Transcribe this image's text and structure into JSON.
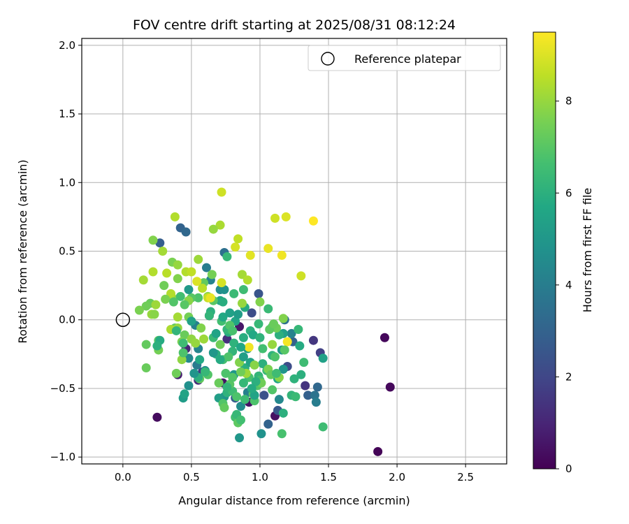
{
  "chart_data": {
    "type": "scatter",
    "title": "FOV centre drift starting at 2025/08/31 08:12:24",
    "xlabel": "Angular distance from reference (arcmin)",
    "ylabel": "Rotation from reference (arcmin)",
    "colorbar_label": "Hours from first FF file",
    "xlim": [
      -0.3,
      2.8
    ],
    "ylim": [
      -1.05,
      2.05
    ],
    "xticks": [
      "0.0",
      "0.5",
      "1.0",
      "1.5",
      "2.0",
      "2.5"
    ],
    "xtick_values": [
      0.0,
      0.5,
      1.0,
      1.5,
      2.0,
      2.5
    ],
    "yticks": [
      "−1.0",
      "−0.5",
      "0.0",
      "0.5",
      "1.0",
      "1.5",
      "2.0"
    ],
    "ytick_values": [
      -1.0,
      -0.5,
      0.0,
      0.5,
      1.0,
      1.5,
      2.0
    ],
    "colorbar_range": [
      0,
      9.5
    ],
    "colorbar_ticks": [
      "0",
      "2",
      "4",
      "6",
      "8"
    ],
    "colorbar_tick_values": [
      0,
      2,
      4,
      6,
      8
    ],
    "colormap": "viridis",
    "grid": true,
    "legend": {
      "position": "top-right",
      "entries": [
        {
          "label": "Reference platepar",
          "marker": "open-circle"
        }
      ]
    },
    "reference_point": {
      "x": 0.0,
      "y": 0.0
    },
    "points": [
      {
        "x": 1.91,
        "y": -0.13,
        "c": 0.2
      },
      {
        "x": 1.95,
        "y": -0.49,
        "c": 0.2
      },
      {
        "x": 1.86,
        "y": -0.96,
        "c": 0.1
      },
      {
        "x": 0.25,
        "y": -0.71,
        "c": 0.3
      },
      {
        "x": 1.11,
        "y": -0.7,
        "c": 0.4
      },
      {
        "x": 0.92,
        "y": -0.6,
        "c": 0.5
      },
      {
        "x": 0.63,
        "y": 0.03,
        "c": 0.3
      },
      {
        "x": 0.46,
        "y": -0.21,
        "c": 1.0
      },
      {
        "x": 0.55,
        "y": -0.44,
        "c": 1.2
      },
      {
        "x": 0.4,
        "y": -0.4,
        "c": 0.8
      },
      {
        "x": 0.85,
        "y": -0.05,
        "c": 0.6
      },
      {
        "x": 0.73,
        "y": -0.46,
        "c": 0.5
      },
      {
        "x": 1.39,
        "y": -0.15,
        "c": 1.5
      },
      {
        "x": 1.44,
        "y": -0.24,
        "c": 1.8
      },
      {
        "x": 1.33,
        "y": -0.48,
        "c": 1.4
      },
      {
        "x": 0.76,
        "y": -0.14,
        "c": 1.3
      },
      {
        "x": 0.58,
        "y": -0.38,
        "c": 1.7
      },
      {
        "x": 0.94,
        "y": 0.05,
        "c": 2.2
      },
      {
        "x": 0.99,
        "y": 0.19,
        "c": 2.5
      },
      {
        "x": 0.27,
        "y": 0.56,
        "c": 2.8
      },
      {
        "x": 0.42,
        "y": 0.67,
        "c": 3.0
      },
      {
        "x": 0.46,
        "y": 0.64,
        "c": 3.2
      },
      {
        "x": 0.74,
        "y": 0.49,
        "c": 3.5
      },
      {
        "x": 0.82,
        "y": -0.57,
        "c": 2.8
      },
      {
        "x": 1.03,
        "y": -0.55,
        "c": 2.4
      },
      {
        "x": 1.13,
        "y": -0.66,
        "c": 2.6
      },
      {
        "x": 1.06,
        "y": -0.76,
        "c": 3.0
      },
      {
        "x": 1.35,
        "y": -0.55,
        "c": 2.9
      },
      {
        "x": 1.4,
        "y": -0.55,
        "c": 3.6
      },
      {
        "x": 1.41,
        "y": -0.6,
        "c": 4.0
      },
      {
        "x": 1.42,
        "y": -0.49,
        "c": 3.2
      },
      {
        "x": 1.2,
        "y": -0.34,
        "c": 2.2
      },
      {
        "x": 1.24,
        "y": -0.16,
        "c": 3.0
      },
      {
        "x": 1.23,
        "y": -0.1,
        "c": 4.2
      },
      {
        "x": 1.18,
        "y": 0.0,
        "c": 3.5
      },
      {
        "x": 0.61,
        "y": 0.38,
        "c": 4.0
      },
      {
        "x": 0.64,
        "y": 0.29,
        "c": 4.2
      },
      {
        "x": 0.71,
        "y": 0.22,
        "c": 4.5
      },
      {
        "x": 0.74,
        "y": 0.22,
        "c": 4.8
      },
      {
        "x": 0.53,
        "y": -0.04,
        "c": 4.1
      },
      {
        "x": 0.55,
        "y": -0.21,
        "c": 4.3
      },
      {
        "x": 0.48,
        "y": -0.28,
        "c": 4.4
      },
      {
        "x": 0.54,
        "y": -0.33,
        "c": 3.9
      },
      {
        "x": 0.6,
        "y": -0.37,
        "c": 4.6
      },
      {
        "x": 0.48,
        "y": -0.48,
        "c": 4.7
      },
      {
        "x": 0.44,
        "y": -0.57,
        "c": 5.2
      },
      {
        "x": 0.45,
        "y": -0.54,
        "c": 5.5
      },
      {
        "x": 0.74,
        "y": -0.56,
        "c": 4.9
      },
      {
        "x": 0.7,
        "y": -0.57,
        "c": 5.3
      },
      {
        "x": 0.86,
        "y": -0.63,
        "c": 4.6
      },
      {
        "x": 0.91,
        "y": -0.53,
        "c": 4.1
      },
      {
        "x": 0.98,
        "y": -0.46,
        "c": 5.0
      },
      {
        "x": 1.01,
        "y": -0.83,
        "c": 4.8
      },
      {
        "x": 0.85,
        "y": -0.86,
        "c": 5.0
      },
      {
        "x": 1.14,
        "y": -0.58,
        "c": 4.4
      },
      {
        "x": 1.17,
        "y": -0.36,
        "c": 4.9
      },
      {
        "x": 1.13,
        "y": -0.43,
        "c": 5.6
      },
      {
        "x": 1.16,
        "y": -0.22,
        "c": 5.1
      },
      {
        "x": 1.17,
        "y": -0.1,
        "c": 5.4
      },
      {
        "x": 1.14,
        "y": -0.11,
        "c": 6.0
      },
      {
        "x": 1.46,
        "y": -0.28,
        "c": 5.4
      },
      {
        "x": 1.29,
        "y": -0.19,
        "c": 5.8
      },
      {
        "x": 1.28,
        "y": -0.07,
        "c": 6.3
      },
      {
        "x": 1.32,
        "y": -0.31,
        "c": 6.5
      },
      {
        "x": 1.3,
        "y": -0.4,
        "c": 6.0
      },
      {
        "x": 1.23,
        "y": -0.55,
        "c": 6.2
      },
      {
        "x": 1.26,
        "y": -0.56,
        "c": 6.4
      },
      {
        "x": 1.17,
        "y": -0.68,
        "c": 6.0
      },
      {
        "x": 1.16,
        "y": -0.83,
        "c": 6.7
      },
      {
        "x": 1.46,
        "y": -0.78,
        "c": 6.5
      },
      {
        "x": 0.81,
        "y": -0.4,
        "c": 5.0
      },
      {
        "x": 0.82,
        "y": -0.01,
        "c": 5.6
      },
      {
        "x": 0.77,
        "y": -0.09,
        "c": 5.9
      },
      {
        "x": 0.76,
        "y": -0.07,
        "c": 6.2
      },
      {
        "x": 0.81,
        "y": 0.19,
        "c": 6.4
      },
      {
        "x": 0.88,
        "y": 0.22,
        "c": 6.5
      },
      {
        "x": 0.89,
        "y": 0.09,
        "c": 5.8
      },
      {
        "x": 0.93,
        "y": -0.08,
        "c": 6.0
      },
      {
        "x": 0.99,
        "y": -0.03,
        "c": 6.3
      },
      {
        "x": 1.06,
        "y": 0.08,
        "c": 6.4
      },
      {
        "x": 1.09,
        "y": -0.05,
        "c": 6.6
      },
      {
        "x": 1.09,
        "y": -0.26,
        "c": 6.1
      },
      {
        "x": 1.05,
        "y": -0.37,
        "c": 6.4
      },
      {
        "x": 1.02,
        "y": -0.32,
        "c": 6.0
      },
      {
        "x": 0.99,
        "y": -0.41,
        "c": 6.2
      },
      {
        "x": 1.0,
        "y": -0.44,
        "c": 6.6
      },
      {
        "x": 0.98,
        "y": -0.48,
        "c": 6.9
      },
      {
        "x": 0.92,
        "y": -0.42,
        "c": 6.7
      },
      {
        "x": 0.95,
        "y": -0.54,
        "c": 7.0
      },
      {
        "x": 0.96,
        "y": -0.59,
        "c": 6.8
      },
      {
        "x": 0.89,
        "y": -0.58,
        "c": 6.5
      },
      {
        "x": 0.88,
        "y": -0.46,
        "c": 6.3
      },
      {
        "x": 0.89,
        "y": -0.35,
        "c": 6.0
      },
      {
        "x": 0.93,
        "y": -0.31,
        "c": 5.5
      },
      {
        "x": 0.91,
        "y": -0.21,
        "c": 5.2
      },
      {
        "x": 0.88,
        "y": -0.13,
        "c": 5.9
      },
      {
        "x": 0.8,
        "y": -0.23,
        "c": 6.2
      },
      {
        "x": 0.73,
        "y": -0.29,
        "c": 6.6
      },
      {
        "x": 0.75,
        "y": -0.39,
        "c": 6.8
      },
      {
        "x": 0.76,
        "y": -0.53,
        "c": 6.1
      },
      {
        "x": 0.8,
        "y": -0.52,
        "c": 6.5
      },
      {
        "x": 0.83,
        "y": -0.56,
        "c": 6.8
      },
      {
        "x": 0.82,
        "y": -0.71,
        "c": 6.6
      },
      {
        "x": 0.84,
        "y": -0.75,
        "c": 7.1
      },
      {
        "x": 0.73,
        "y": -0.61,
        "c": 6.9
      },
      {
        "x": 0.74,
        "y": -0.64,
        "c": 7.2
      },
      {
        "x": 0.7,
        "y": -0.46,
        "c": 7.3
      },
      {
        "x": 0.78,
        "y": -0.47,
        "c": 7.0
      },
      {
        "x": 0.68,
        "y": -0.25,
        "c": 6.0
      },
      {
        "x": 0.66,
        "y": -0.13,
        "c": 6.4
      },
      {
        "x": 0.71,
        "y": -0.18,
        "c": 7.4
      },
      {
        "x": 0.72,
        "y": -0.01,
        "c": 6.6
      },
      {
        "x": 0.73,
        "y": 0.02,
        "c": 5.7
      },
      {
        "x": 0.78,
        "y": 0.05,
        "c": 5.4
      },
      {
        "x": 0.84,
        "y": 0.04,
        "c": 5.2
      },
      {
        "x": 0.71,
        "y": 0.14,
        "c": 5.6
      },
      {
        "x": 0.66,
        "y": 0.14,
        "c": 7.0
      },
      {
        "x": 0.59,
        "y": 0.27,
        "c": 7.2
      },
      {
        "x": 0.65,
        "y": 0.33,
        "c": 7.5
      },
      {
        "x": 0.62,
        "y": 0.17,
        "c": 7.8
      },
      {
        "x": 0.64,
        "y": 0.06,
        "c": 6.0
      },
      {
        "x": 0.63,
        "y": 0.03,
        "c": 6.2
      },
      {
        "x": 0.55,
        "y": 0.16,
        "c": 6.8
      },
      {
        "x": 0.5,
        "y": 0.16,
        "c": 7.0
      },
      {
        "x": 0.48,
        "y": 0.02,
        "c": 7.5
      },
      {
        "x": 0.48,
        "y": 0.14,
        "c": 7.8
      },
      {
        "x": 0.45,
        "y": 0.11,
        "c": 7.0
      },
      {
        "x": 0.45,
        "y": -0.11,
        "c": 7.3
      },
      {
        "x": 0.43,
        "y": -0.16,
        "c": 7.6
      },
      {
        "x": 0.5,
        "y": -0.14,
        "c": 7.9
      },
      {
        "x": 0.53,
        "y": -0.17,
        "c": 8.0
      },
      {
        "x": 0.57,
        "y": -0.06,
        "c": 7.7
      },
      {
        "x": 0.59,
        "y": -0.14,
        "c": 8.1
      },
      {
        "x": 0.62,
        "y": -0.4,
        "c": 6.9
      },
      {
        "x": 0.6,
        "y": -0.38,
        "c": 6.3
      },
      {
        "x": 0.56,
        "y": -0.43,
        "c": 7.2
      },
      {
        "x": 0.43,
        "y": -0.29,
        "c": 7.9
      },
      {
        "x": 0.39,
        "y": -0.39,
        "c": 7.4
      },
      {
        "x": 0.38,
        "y": -0.06,
        "c": 7.1
      },
      {
        "x": 0.4,
        "y": -0.06,
        "c": 8.0
      },
      {
        "x": 0.4,
        "y": 0.02,
        "c": 8.2
      },
      {
        "x": 0.36,
        "y": 0.16,
        "c": 7.9
      },
      {
        "x": 0.35,
        "y": 0.19,
        "c": 8.4
      },
      {
        "x": 0.35,
        "y": -0.07,
        "c": 8.3
      },
      {
        "x": 0.31,
        "y": 0.15,
        "c": 7.6
      },
      {
        "x": 0.3,
        "y": 0.25,
        "c": 7.4
      },
      {
        "x": 0.32,
        "y": 0.34,
        "c": 8.5
      },
      {
        "x": 0.29,
        "y": 0.5,
        "c": 8.2
      },
      {
        "x": 0.22,
        "y": 0.58,
        "c": 7.7
      },
      {
        "x": 0.22,
        "y": 0.35,
        "c": 8.4
      },
      {
        "x": 0.2,
        "y": 0.12,
        "c": 7.3
      },
      {
        "x": 0.21,
        "y": 0.04,
        "c": 8.0
      },
      {
        "x": 0.24,
        "y": 0.11,
        "c": 8.1
      },
      {
        "x": 0.23,
        "y": 0.04,
        "c": 7.8
      },
      {
        "x": 0.17,
        "y": 0.1,
        "c": 7.4
      },
      {
        "x": 0.12,
        "y": 0.07,
        "c": 7.6
      },
      {
        "x": 0.15,
        "y": 0.29,
        "c": 8.2
      },
      {
        "x": 0.17,
        "y": -0.18,
        "c": 7.2
      },
      {
        "x": 0.26,
        "y": -0.15,
        "c": 7.0
      },
      {
        "x": 0.26,
        "y": -0.22,
        "c": 7.5
      },
      {
        "x": 0.17,
        "y": -0.35,
        "c": 7.3
      },
      {
        "x": 0.36,
        "y": 0.42,
        "c": 7.6
      },
      {
        "x": 0.4,
        "y": 0.4,
        "c": 8.0
      },
      {
        "x": 0.4,
        "y": 0.3,
        "c": 7.7
      },
      {
        "x": 0.46,
        "y": 0.35,
        "c": 8.4
      },
      {
        "x": 0.5,
        "y": 0.35,
        "c": 8.6
      },
      {
        "x": 0.55,
        "y": 0.44,
        "c": 8.1
      },
      {
        "x": 0.54,
        "y": 0.28,
        "c": 9.0
      },
      {
        "x": 0.58,
        "y": 0.23,
        "c": 8.5
      },
      {
        "x": 0.62,
        "y": 0.16,
        "c": 8.7
      },
      {
        "x": 0.64,
        "y": 0.16,
        "c": 9.2
      },
      {
        "x": 0.71,
        "y": 0.69,
        "c": 8.3
      },
      {
        "x": 0.66,
        "y": 0.66,
        "c": 8.0
      },
      {
        "x": 0.72,
        "y": 0.27,
        "c": 8.9
      },
      {
        "x": 0.72,
        "y": 0.93,
        "c": 8.8
      },
      {
        "x": 0.38,
        "y": 0.75,
        "c": 8.4
      },
      {
        "x": 0.82,
        "y": 0.53,
        "c": 8.9
      },
      {
        "x": 0.84,
        "y": 0.59,
        "c": 8.6
      },
      {
        "x": 0.87,
        "y": 0.33,
        "c": 8.2
      },
      {
        "x": 0.93,
        "y": 0.47,
        "c": 9.1
      },
      {
        "x": 0.91,
        "y": 0.29,
        "c": 8.4
      },
      {
        "x": 0.87,
        "y": 0.12,
        "c": 8.0
      },
      {
        "x": 1.0,
        "y": 0.13,
        "c": 7.7
      },
      {
        "x": 1.06,
        "y": 0.52,
        "c": 9.2
      },
      {
        "x": 1.11,
        "y": 0.74,
        "c": 8.8
      },
      {
        "x": 1.19,
        "y": 0.75,
        "c": 9.0
      },
      {
        "x": 1.16,
        "y": 0.47,
        "c": 9.3
      },
      {
        "x": 1.39,
        "y": 0.72,
        "c": 9.5
      },
      {
        "x": 1.3,
        "y": 0.32,
        "c": 8.8
      },
      {
        "x": 1.17,
        "y": 0.01,
        "c": 7.7
      },
      {
        "x": 1.12,
        "y": -0.06,
        "c": 7.4
      },
      {
        "x": 1.2,
        "y": -0.16,
        "c": 9.4
      },
      {
        "x": 1.18,
        "y": -0.22,
        "c": 7.0
      },
      {
        "x": 1.09,
        "y": -0.18,
        "c": 8.0
      },
      {
        "x": 1.06,
        "y": -0.36,
        "c": 7.6
      },
      {
        "x": 1.08,
        "y": -0.4,
        "c": 7.2
      },
      {
        "x": 1.14,
        "y": -0.42,
        "c": 7.8
      },
      {
        "x": 1.01,
        "y": -0.46,
        "c": 7.4
      },
      {
        "x": 1.09,
        "y": -0.51,
        "c": 6.9
      },
      {
        "x": 0.96,
        "y": -0.33,
        "c": 7.8
      },
      {
        "x": 0.92,
        "y": -0.2,
        "c": 9.3
      },
      {
        "x": 0.9,
        "y": -0.39,
        "c": 8.1
      },
      {
        "x": 0.86,
        "y": -0.38,
        "c": 7.4
      },
      {
        "x": 0.85,
        "y": -0.31,
        "c": 7.7
      },
      {
        "x": 0.8,
        "y": -0.42,
        "c": 6.9
      },
      {
        "x": 0.77,
        "y": -0.27,
        "c": 6.8
      },
      {
        "x": 0.71,
        "y": -0.29,
        "c": 5.8
      },
      {
        "x": 0.68,
        "y": -0.1,
        "c": 5.5
      },
      {
        "x": 0.66,
        "y": -0.24,
        "c": 5.0
      },
      {
        "x": 0.56,
        "y": -0.29,
        "c": 5.7
      },
      {
        "x": 0.55,
        "y": -0.42,
        "c": 6.0
      },
      {
        "x": 0.52,
        "y": -0.39,
        "c": 4.9
      },
      {
        "x": 0.44,
        "y": -0.24,
        "c": 6.8
      },
      {
        "x": 0.44,
        "y": -0.17,
        "c": 6.5
      },
      {
        "x": 0.5,
        "y": -0.01,
        "c": 5.4
      },
      {
        "x": 0.48,
        "y": 0.22,
        "c": 5.1
      },
      {
        "x": 0.42,
        "y": 0.17,
        "c": 6.6
      },
      {
        "x": 0.37,
        "y": 0.13,
        "c": 6.9
      },
      {
        "x": 0.39,
        "y": -0.08,
        "c": 6.2
      },
      {
        "x": 0.27,
        "y": -0.15,
        "c": 5.8
      },
      {
        "x": 0.25,
        "y": -0.19,
        "c": 6.0
      },
      {
        "x": 0.73,
        "y": 0.13,
        "c": 5.9
      },
      {
        "x": 0.76,
        "y": 0.46,
        "c": 6.3
      },
      {
        "x": 0.78,
        "y": -0.04,
        "c": 6.9
      },
      {
        "x": 0.8,
        "y": -0.08,
        "c": 6.7
      },
      {
        "x": 0.81,
        "y": -0.17,
        "c": 6.1
      },
      {
        "x": 0.86,
        "y": -0.2,
        "c": 5.6
      },
      {
        "x": 0.88,
        "y": -0.27,
        "c": 5.3
      },
      {
        "x": 0.95,
        "y": -0.11,
        "c": 5.7
      },
      {
        "x": 1.0,
        "y": -0.13,
        "c": 6.1
      },
      {
        "x": 1.02,
        "y": -0.21,
        "c": 6.6
      },
      {
        "x": 1.07,
        "y": -0.07,
        "c": 7.1
      },
      {
        "x": 1.11,
        "y": -0.27,
        "c": 6.8
      },
      {
        "x": 1.12,
        "y": -0.39,
        "c": 6.5
      },
      {
        "x": 1.1,
        "y": -0.03,
        "c": 7.3
      },
      {
        "x": 0.97,
        "y": -0.45,
        "c": 6.0
      },
      {
        "x": 0.96,
        "y": -0.55,
        "c": 5.5
      },
      {
        "x": 0.83,
        "y": -0.69,
        "c": 6.3
      },
      {
        "x": 0.86,
        "y": -0.73,
        "c": 6.6
      },
      {
        "x": 0.76,
        "y": -0.49,
        "c": 6.2
      },
      {
        "x": 0.94,
        "y": -0.5,
        "c": 5.8
      },
      {
        "x": 1.25,
        "y": -0.43,
        "c": 6.1
      }
    ]
  }
}
